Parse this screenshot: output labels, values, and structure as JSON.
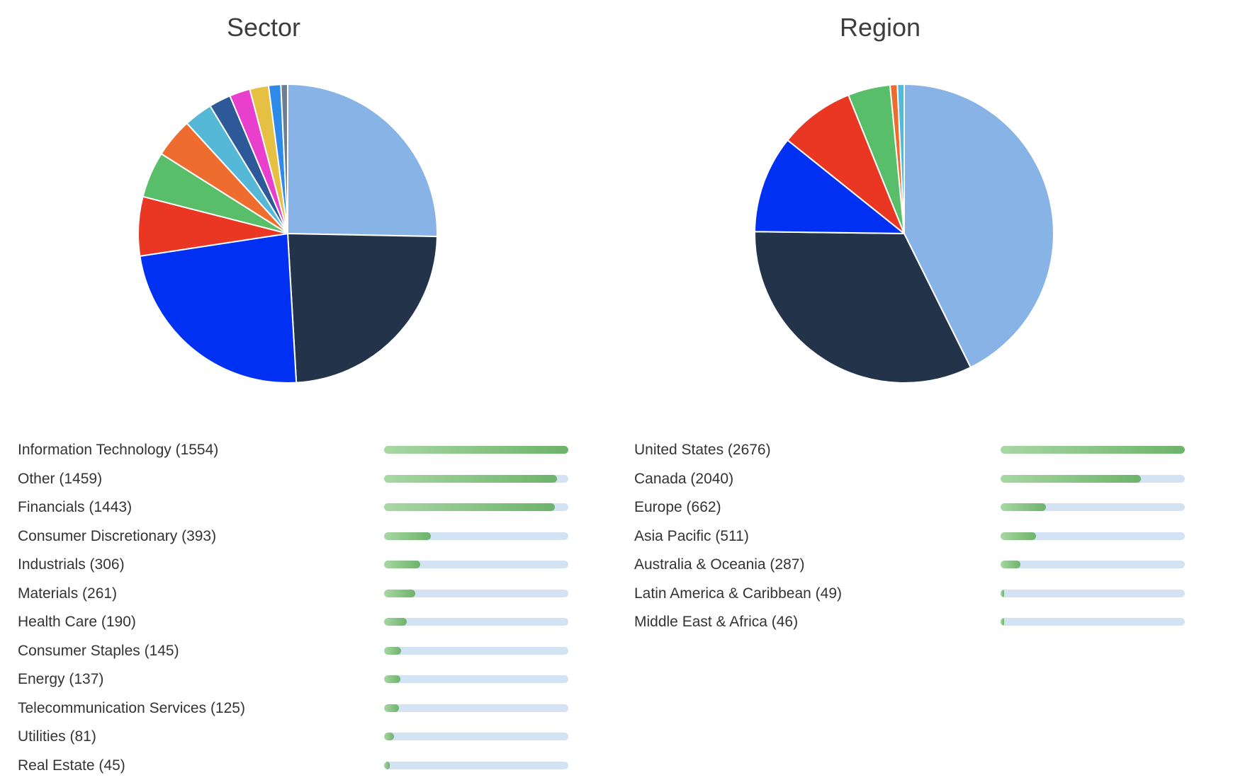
{
  "chart_data": [
    {
      "type": "pie",
      "title": "Sector",
      "colors": [
        "#87b3e6",
        "#233349",
        "#0031f3",
        "#ea3723",
        "#58be6a",
        "#ee6d2e",
        "#55b8d6",
        "#2d5998",
        "#e93fcd",
        "#e5c043",
        "#2e8ae9",
        "#6e7f93"
      ],
      "slices": [
        {
          "label": "Information Technology",
          "count_label": "(1554)",
          "value": 1554
        },
        {
          "label": "Other",
          "count_label": "(1459)",
          "value": 1459
        },
        {
          "label": "Financials",
          "count_label": "(1443)",
          "value": 1443
        },
        {
          "label": "Consumer Discretionary",
          "count_label": "(393)",
          "value": 393
        },
        {
          "label": "Industrials",
          "count_label": "(306)",
          "value": 306
        },
        {
          "label": "Materials",
          "count_label": "(261)",
          "value": 261
        },
        {
          "label": "Health Care",
          "count_label": "(190)",
          "value": 190
        },
        {
          "label": "Consumer Staples",
          "count_label": "(145)",
          "value": 145
        },
        {
          "label": "Energy",
          "count_label": "(137)",
          "value": 137
        },
        {
          "label": "Telecommunication Services",
          "count_label": "(125)",
          "value": 125
        },
        {
          "label": "Utilities",
          "count_label": "(81)",
          "value": 81
        },
        {
          "label": "Real Estate",
          "count_label": "(45)",
          "value": 45
        }
      ]
    },
    {
      "type": "pie",
      "title": "Region",
      "colors": [
        "#87b3e6",
        "#233349",
        "#0031f3",
        "#ea3723",
        "#58be6a",
        "#ee6d2e",
        "#55b8d6"
      ],
      "slices": [
        {
          "label": "United States",
          "count_label": "(2676)",
          "value": 2676
        },
        {
          "label": "Canada",
          "count_label": "(2040)",
          "value": 2040
        },
        {
          "label": "Europe",
          "count_label": "(662)",
          "value": 662
        },
        {
          "label": "Asia Pacific",
          "count_label": "(511)",
          "value": 511
        },
        {
          "label": "Australia & Oceania",
          "count_label": "(287)",
          "value": 287
        },
        {
          "label": "Latin America & Caribbean",
          "count_label": "(49)",
          "value": 49
        },
        {
          "label": "Middle East & Africa",
          "count_label": "(46)",
          "value": 46
        }
      ]
    }
  ],
  "legend_bar_colors": {
    "track": "#d3e3f4",
    "fill_start": "#a8d7a3",
    "fill_end": "#6db36a"
  }
}
